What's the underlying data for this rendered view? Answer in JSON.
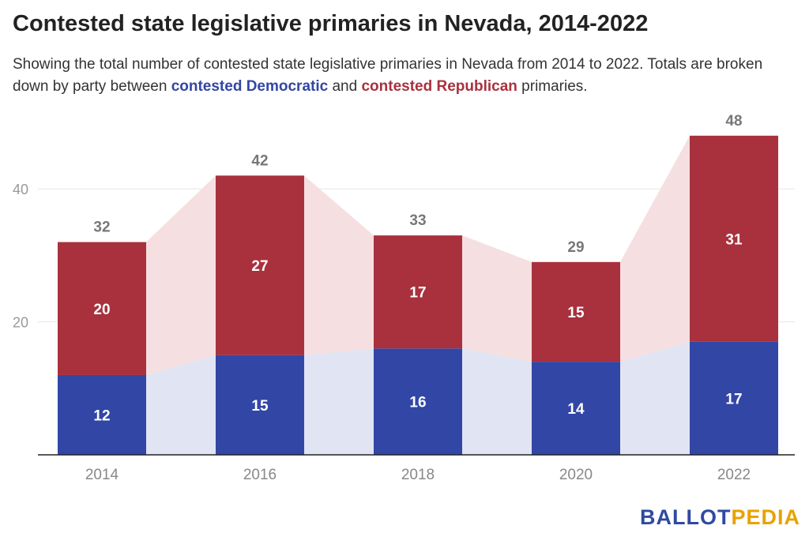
{
  "header": {
    "title": "Contested state legislative primaries in Nevada, 2014-2022",
    "subtitle_part1": "Showing the total number of contested state legislative primaries in Nevada from 2014 to 2022. Totals are broken down by party between ",
    "subtitle_dem": "contested Democratic",
    "subtitle_mid": " and ",
    "subtitle_rep": "contested Republican",
    "subtitle_end": " primaries."
  },
  "logo": {
    "part1": "BALLOT",
    "part2": "PEDIA"
  },
  "chart_data": {
    "type": "bar",
    "stacked": true,
    "categories": [
      "2014",
      "2016",
      "2018",
      "2020",
      "2022"
    ],
    "series": [
      {
        "name": "contested Democratic",
        "values": [
          12,
          15,
          16,
          14,
          17
        ],
        "color": "#3246a6",
        "area_color": "#e1e4f3"
      },
      {
        "name": "contested Republican",
        "values": [
          20,
          27,
          17,
          15,
          31
        ],
        "color": "#a8313d",
        "area_color": "#f5dfe1"
      }
    ],
    "totals": [
      32,
      42,
      33,
      29,
      48
    ],
    "y_ticks": [
      20,
      40
    ],
    "ylim": [
      0,
      52
    ],
    "grid": true,
    "colors": {
      "segment_label": "#ffffff",
      "total_label": "#777777",
      "axis_label": "#888888",
      "grid": "#e6e6e6",
      "baseline": "#222222"
    }
  }
}
